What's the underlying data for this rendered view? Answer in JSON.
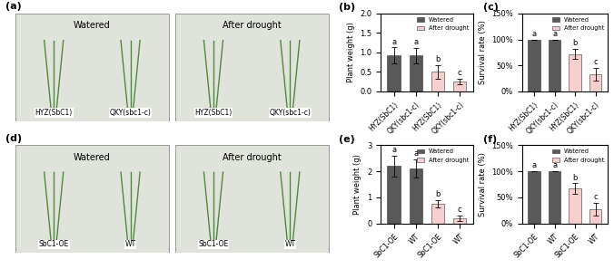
{
  "photos": [
    {
      "title": "(a)",
      "panels": [
        {
          "label": "Watered",
          "plants": [
            "HYZ(SbC1)",
            "QKY(sbc1-c)"
          ]
        },
        {
          "label": "After drought",
          "plants": [
            "HYZ(SbC1)",
            "QKY(sbc1-c)"
          ]
        }
      ]
    },
    {
      "title": "(d)",
      "panels": [
        {
          "label": "Watered",
          "plants": [
            "SbC1-OE",
            "WT"
          ]
        },
        {
          "label": "After drought",
          "plants": [
            "SbC1-OE",
            "WT"
          ]
        }
      ]
    }
  ],
  "chart_data": [
    {
      "type": "bar",
      "title": "(b)",
      "y_label": "Plant weight (g)",
      "categories": [
        "HYZ(SbC1)",
        "QKY(sbc1-c)",
        "HYZ(SbC1)",
        "QKY(sbc1-c)"
      ],
      "series": [
        {
          "name": "Watered",
          "color": "#595959",
          "values": [
            0.93,
            0.92,
            null,
            null
          ],
          "errors": [
            0.2,
            0.2,
            null,
            null
          ]
        },
        {
          "name": "After drought",
          "color": "#f8cfcf",
          "values": [
            null,
            null,
            0.5,
            0.25
          ],
          "errors": [
            null,
            null,
            0.17,
            0.07
          ]
        }
      ],
      "annotations": [
        "a",
        "a",
        "b",
        "c"
      ],
      "ylim": [
        0,
        2
      ],
      "yticks": [
        {
          "value": 0,
          "label": "0.0"
        },
        {
          "value": 0.5,
          "label": "0.5"
        },
        {
          "value": 1,
          "label": "1.0"
        },
        {
          "value": 1.5,
          "label": "1.5"
        },
        {
          "value": 2,
          "label": "2.0"
        }
      ],
      "legend": "upper right",
      "grid": false
    },
    {
      "type": "bar",
      "title": "(c)",
      "y_label": "Survival rate (%)",
      "categories": [
        "HYZ(SbC1)",
        "QKY(sbc1-c)",
        "HYZ(SbC1)",
        "QKY(sbc1-c)"
      ],
      "series": [
        {
          "name": "Watered",
          "color": "#595959",
          "values": [
            100,
            100,
            null,
            null
          ],
          "errors": [
            0,
            0,
            null,
            null
          ]
        },
        {
          "name": "After drought",
          "color": "#f8cfcf",
          "values": [
            null,
            null,
            72,
            33
          ],
          "errors": [
            null,
            null,
            10,
            12
          ]
        }
      ],
      "annotations": [
        "a",
        "a",
        "b",
        "c"
      ],
      "ylim": [
        0,
        150
      ],
      "yticks": [
        {
          "value": 0,
          "label": "0%"
        },
        {
          "value": 50,
          "label": "50%"
        },
        {
          "value": 100,
          "label": "100%"
        },
        {
          "value": 150,
          "label": "150%"
        }
      ],
      "legend": "upper right",
      "grid": false
    },
    {
      "type": "bar",
      "title": "(e)",
      "y_label": "Plant weight (g)",
      "categories": [
        "SbC1-OE",
        "WT",
        "SbC1-OE",
        "WT"
      ],
      "series": [
        {
          "name": "Watered",
          "color": "#595959",
          "values": [
            2.2,
            2.1,
            null,
            null
          ],
          "errors": [
            0.4,
            0.35,
            null,
            null
          ]
        },
        {
          "name": "After drought",
          "color": "#f8cfcf",
          "values": [
            null,
            null,
            0.75,
            0.2
          ],
          "errors": [
            null,
            null,
            0.15,
            0.1
          ]
        }
      ],
      "annotations": [
        "a",
        "a",
        "b",
        "c"
      ],
      "ylim": [
        0,
        3
      ],
      "yticks": [
        0,
        1,
        2,
        3
      ],
      "legend": "upper right",
      "grid": false
    },
    {
      "type": "bar",
      "title": "(f)",
      "y_label": "Survival rate (%)",
      "categories": [
        "SbC1-OE",
        "WT",
        "SbC1-OE",
        "WT"
      ],
      "series": [
        {
          "name": "Watered",
          "color": "#595959",
          "values": [
            100,
            100,
            null,
            null
          ],
          "errors": [
            0,
            0,
            null,
            null
          ]
        },
        {
          "name": "After drought",
          "color": "#f8cfcf",
          "values": [
            null,
            null,
            67,
            27
          ],
          "errors": [
            null,
            null,
            10,
            12
          ]
        }
      ],
      "annotations": [
        "a",
        "a",
        "b",
        "c"
      ],
      "ylim": [
        0,
        150
      ],
      "yticks": [
        {
          "value": 0,
          "label": "0%"
        },
        {
          "value": 50,
          "label": "50%"
        },
        {
          "value": 100,
          "label": "100%"
        },
        {
          "value": 150,
          "label": "150%"
        }
      ],
      "legend": "upper right",
      "grid": false
    }
  ]
}
